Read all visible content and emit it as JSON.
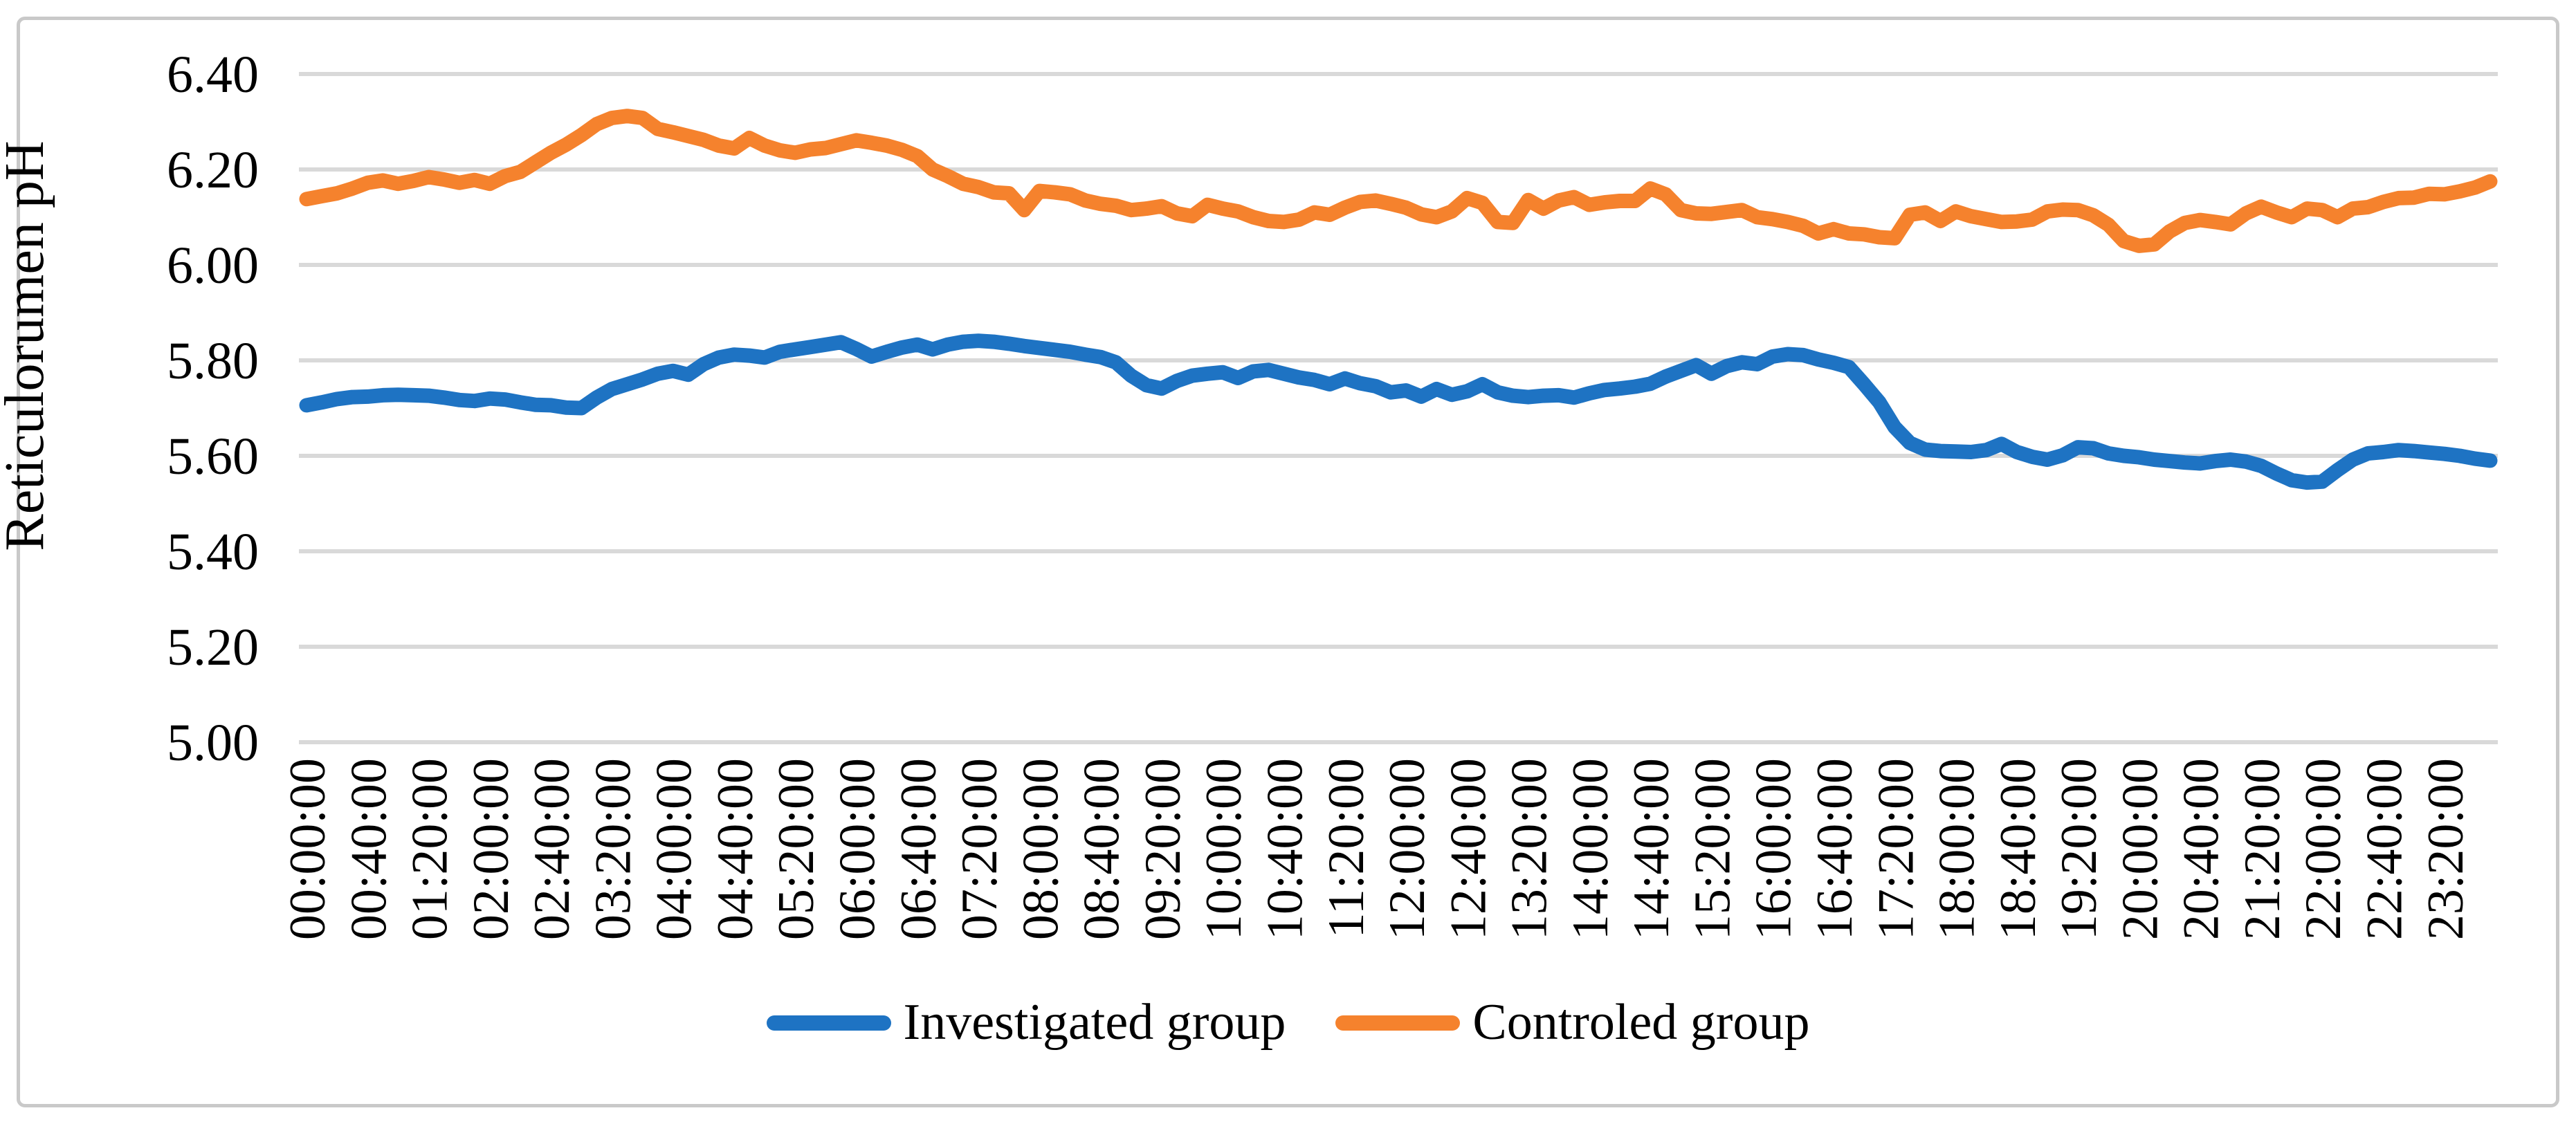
{
  "chart_data": {
    "type": "line",
    "title": "",
    "xlabel": "",
    "ylabel": "Reticulorumen pH",
    "ylim": [
      5.0,
      6.4
    ],
    "ytick_values": [
      6.4,
      6.2,
      6.0,
      5.8,
      5.6,
      5.4,
      5.2,
      5.0
    ],
    "ytick_labels": [
      "6.40",
      "6.20",
      "6.00",
      "5.80",
      "5.60",
      "5.40",
      "5.20",
      "5.00"
    ],
    "x_label_every": 4,
    "grid": "horizontal",
    "grid_color": "#D9D9D9",
    "frame_color": "#C9C9C9",
    "legend_position": "bottom",
    "categories": [
      "00:00:00",
      "00:10:00",
      "00:20:00",
      "00:30:00",
      "00:40:00",
      "00:50:00",
      "01:00:00",
      "01:10:00",
      "01:20:00",
      "01:30:00",
      "01:40:00",
      "01:50:00",
      "02:00:00",
      "02:10:00",
      "02:20:00",
      "02:30:00",
      "02:40:00",
      "02:50:00",
      "03:00:00",
      "03:10:00",
      "03:20:00",
      "03:30:00",
      "03:40:00",
      "03:50:00",
      "04:00:00",
      "04:10:00",
      "04:20:00",
      "04:30:00",
      "04:40:00",
      "04:50:00",
      "05:00:00",
      "05:10:00",
      "05:20:00",
      "05:30:00",
      "05:40:00",
      "05:50:00",
      "06:00:00",
      "06:10:00",
      "06:20:00",
      "06:30:00",
      "06:40:00",
      "06:50:00",
      "07:00:00",
      "07:10:00",
      "07:20:00",
      "07:30:00",
      "07:40:00",
      "07:50:00",
      "08:00:00",
      "08:10:00",
      "08:20:00",
      "08:30:00",
      "08:40:00",
      "08:50:00",
      "09:00:00",
      "09:10:00",
      "09:20:00",
      "09:30:00",
      "09:40:00",
      "09:50:00",
      "10:00:00",
      "10:10:00",
      "10:20:00",
      "10:30:00",
      "10:40:00",
      "10:50:00",
      "11:00:00",
      "11:10:00",
      "11:20:00",
      "11:30:00",
      "11:40:00",
      "11:50:00",
      "12:00:00",
      "12:10:00",
      "12:20:00",
      "12:30:00",
      "12:40:00",
      "12:50:00",
      "13:00:00",
      "13:10:00",
      "13:20:00",
      "13:30:00",
      "13:40:00",
      "13:50:00",
      "14:00:00",
      "14:10:00",
      "14:20:00",
      "14:30:00",
      "14:40:00",
      "14:50:00",
      "15:00:00",
      "15:10:00",
      "15:20:00",
      "15:30:00",
      "15:40:00",
      "15:50:00",
      "16:00:00",
      "16:10:00",
      "16:20:00",
      "16:30:00",
      "16:40:00",
      "16:50:00",
      "17:00:00",
      "17:10:00",
      "17:20:00",
      "17:30:00",
      "17:40:00",
      "17:50:00",
      "18:00:00",
      "18:10:00",
      "18:20:00",
      "18:30:00",
      "18:40:00",
      "18:50:00",
      "19:00:00",
      "19:10:00",
      "19:20:00",
      "19:30:00",
      "19:40:00",
      "19:50:00",
      "20:00:00",
      "20:10:00",
      "20:20:00",
      "20:30:00",
      "20:40:00",
      "20:50:00",
      "21:00:00",
      "21:10:00",
      "21:20:00",
      "21:30:00",
      "21:40:00",
      "21:50:00",
      "22:00:00",
      "22:10:00",
      "22:20:00",
      "22:30:00",
      "22:40:00",
      "22:50:00",
      "23:00:00",
      "23:10:00",
      "23:20:00",
      "23:30:00",
      "23:40:00",
      "23:50:00"
    ],
    "series": [
      {
        "name": "Investigated group",
        "color": "#1E73C3",
        "values": [
          5.706,
          5.712,
          5.719,
          5.723,
          5.724,
          5.727,
          5.728,
          5.727,
          5.726,
          5.722,
          5.717,
          5.715,
          5.72,
          5.718,
          5.712,
          5.707,
          5.706,
          5.701,
          5.7,
          5.722,
          5.74,
          5.75,
          5.76,
          5.772,
          5.778,
          5.77,
          5.792,
          5.806,
          5.812,
          5.81,
          5.806,
          5.818,
          5.823,
          5.828,
          5.833,
          5.838,
          5.824,
          5.808,
          5.818,
          5.827,
          5.833,
          5.823,
          5.833,
          5.839,
          5.841,
          5.839,
          5.835,
          5.83,
          5.826,
          5.822,
          5.818,
          5.812,
          5.807,
          5.796,
          5.768,
          5.748,
          5.741,
          5.757,
          5.768,
          5.772,
          5.775,
          5.763,
          5.777,
          5.78,
          5.772,
          5.764,
          5.759,
          5.75,
          5.762,
          5.752,
          5.746,
          5.733,
          5.737,
          5.724,
          5.74,
          5.728,
          5.735,
          5.75,
          5.733,
          5.726,
          5.723,
          5.726,
          5.727,
          5.722,
          5.731,
          5.738,
          5.741,
          5.745,
          5.751,
          5.766,
          5.778,
          5.79,
          5.772,
          5.788,
          5.796,
          5.792,
          5.808,
          5.813,
          5.811,
          5.802,
          5.795,
          5.786,
          5.75,
          5.712,
          5.66,
          5.627,
          5.613,
          5.61,
          5.609,
          5.608,
          5.612,
          5.625,
          5.608,
          5.598,
          5.592,
          5.601,
          5.618,
          5.616,
          5.605,
          5.6,
          5.597,
          5.592,
          5.589,
          5.586,
          5.584,
          5.589,
          5.592,
          5.588,
          5.579,
          5.563,
          5.549,
          5.544,
          5.546,
          5.57,
          5.592,
          5.605,
          5.608,
          5.612,
          5.61,
          5.607,
          5.604,
          5.6,
          5.594,
          5.59
        ]
      },
      {
        "name": "Controled group",
        "color": "#F5822D",
        "values": [
          6.138,
          6.144,
          6.15,
          6.16,
          6.172,
          6.177,
          6.17,
          6.176,
          6.184,
          6.179,
          6.172,
          6.178,
          6.17,
          6.186,
          6.195,
          6.215,
          6.235,
          6.252,
          6.272,
          6.295,
          6.308,
          6.312,
          6.308,
          6.285,
          6.278,
          6.27,
          6.262,
          6.25,
          6.244,
          6.266,
          6.25,
          6.24,
          6.235,
          6.242,
          6.245,
          6.253,
          6.261,
          6.256,
          6.25,
          6.241,
          6.228,
          6.2,
          6.186,
          6.17,
          6.163,
          6.152,
          6.15,
          6.115,
          6.155,
          6.152,
          6.148,
          6.135,
          6.128,
          6.124,
          6.115,
          6.118,
          6.123,
          6.108,
          6.102,
          6.126,
          6.118,
          6.112,
          6.1,
          6.092,
          6.09,
          6.095,
          6.11,
          6.105,
          6.12,
          6.132,
          6.135,
          6.128,
          6.12,
          6.106,
          6.1,
          6.112,
          6.14,
          6.13,
          6.09,
          6.088,
          6.136,
          6.118,
          6.135,
          6.142,
          6.126,
          6.131,
          6.134,
          6.134,
          6.16,
          6.148,
          6.115,
          6.108,
          6.107,
          6.111,
          6.115,
          6.1,
          6.096,
          6.09,
          6.082,
          6.066,
          6.075,
          6.066,
          6.064,
          6.058,
          6.056,
          6.105,
          6.11,
          6.092,
          6.112,
          6.102,
          6.096,
          6.09,
          6.091,
          6.095,
          6.112,
          6.116,
          6.115,
          6.104,
          6.084,
          6.05,
          6.04,
          6.043,
          6.07,
          6.088,
          6.094,
          6.09,
          6.085,
          6.108,
          6.122,
          6.11,
          6.1,
          6.118,
          6.115,
          6.1,
          6.118,
          6.121,
          6.132,
          6.14,
          6.141,
          6.149,
          6.148,
          6.154,
          6.162,
          6.175
        ]
      }
    ]
  }
}
